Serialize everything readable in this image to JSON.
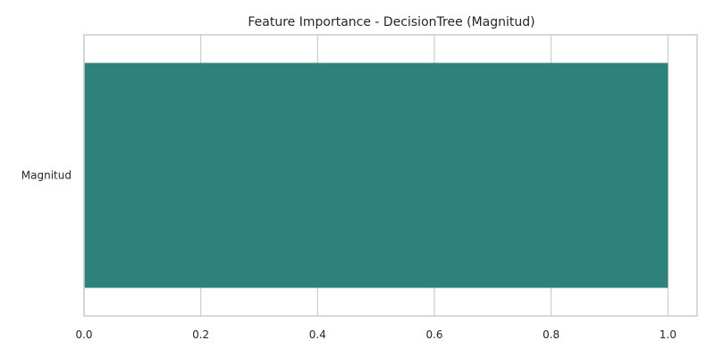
{
  "chart_data": {
    "type": "bar",
    "orientation": "horizontal",
    "title": "Feature Importance - DecisionTree (Magnitud)",
    "xlabel": "",
    "ylabel": "",
    "categories": [
      "Magnitud"
    ],
    "values": [
      1.0
    ],
    "xlim": [
      0.0,
      1.05
    ],
    "x_ticks": [
      0.0,
      0.2,
      0.4,
      0.6,
      0.8,
      1.0
    ],
    "x_tick_labels": [
      "0.0",
      "0.2",
      "0.4",
      "0.6",
      "0.8",
      "1.0"
    ],
    "grid": true,
    "legend": "none",
    "bar_color": "#2e827c",
    "grid_color": "#cccccc",
    "text_color": "#262626"
  }
}
